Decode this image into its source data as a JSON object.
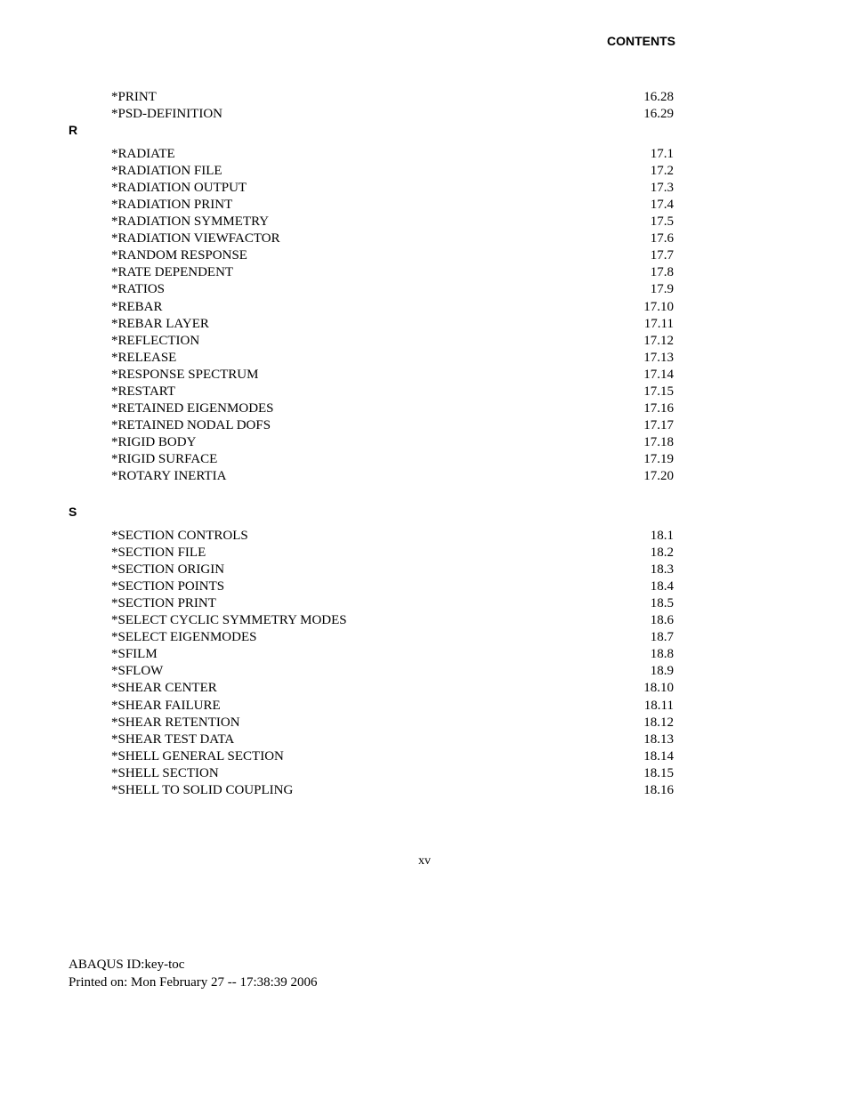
{
  "header": {
    "title": "CONTENTS"
  },
  "initial_entries": [
    {
      "label": "*PRINT",
      "page": "16.28"
    },
    {
      "label": "*PSD-DEFINITION",
      "page": "16.29"
    }
  ],
  "sections": [
    {
      "letter": "R",
      "entries": [
        {
          "label": "*RADIATE",
          "page": "17.1"
        },
        {
          "label": "*RADIATION FILE",
          "page": "17.2"
        },
        {
          "label": "*RADIATION OUTPUT",
          "page": "17.3"
        },
        {
          "label": "*RADIATION PRINT",
          "page": "17.4"
        },
        {
          "label": "*RADIATION SYMMETRY",
          "page": "17.5"
        },
        {
          "label": "*RADIATION VIEWFACTOR",
          "page": "17.6"
        },
        {
          "label": "*RANDOM RESPONSE",
          "page": "17.7"
        },
        {
          "label": "*RATE DEPENDENT",
          "page": "17.8"
        },
        {
          "label": "*RATIOS",
          "page": "17.9"
        },
        {
          "label": "*REBAR",
          "page": "17.10"
        },
        {
          "label": "*REBAR LAYER",
          "page": "17.11"
        },
        {
          "label": "*REFLECTION",
          "page": "17.12"
        },
        {
          "label": "*RELEASE",
          "page": "17.13"
        },
        {
          "label": "*RESPONSE SPECTRUM",
          "page": "17.14"
        },
        {
          "label": "*RESTART",
          "page": "17.15"
        },
        {
          "label": "*RETAINED EIGENMODES",
          "page": "17.16"
        },
        {
          "label": "*RETAINED NODAL DOFS",
          "page": "17.17"
        },
        {
          "label": "*RIGID BODY",
          "page": "17.18"
        },
        {
          "label": "*RIGID SURFACE",
          "page": "17.19"
        },
        {
          "label": "*ROTARY INERTIA",
          "page": "17.20"
        }
      ]
    },
    {
      "letter": "S",
      "entries": [
        {
          "label": "*SECTION CONTROLS",
          "page": "18.1"
        },
        {
          "label": "*SECTION FILE",
          "page": "18.2"
        },
        {
          "label": "*SECTION ORIGIN",
          "page": "18.3"
        },
        {
          "label": "*SECTION POINTS",
          "page": "18.4"
        },
        {
          "label": "*SECTION PRINT",
          "page": "18.5"
        },
        {
          "label": "*SELECT CYCLIC SYMMETRY MODES",
          "page": "18.6"
        },
        {
          "label": "*SELECT EIGENMODES",
          "page": "18.7"
        },
        {
          "label": "*SFILM",
          "page": "18.8"
        },
        {
          "label": "*SFLOW",
          "page": "18.9"
        },
        {
          "label": "*SHEAR CENTER",
          "page": "18.10"
        },
        {
          "label": "*SHEAR FAILURE",
          "page": "18.11"
        },
        {
          "label": "*SHEAR RETENTION",
          "page": "18.12"
        },
        {
          "label": "*SHEAR TEST DATA",
          "page": "18.13"
        },
        {
          "label": "*SHELL GENERAL SECTION",
          "page": "18.14"
        },
        {
          "label": "*SHELL SECTION",
          "page": "18.15"
        },
        {
          "label": "*SHELL TO SOLID COUPLING",
          "page": "18.16"
        }
      ]
    }
  ],
  "page_number": "xv",
  "footer": {
    "line1": "ABAQUS ID:key-toc",
    "line2": "Printed on: Mon February 27 -- 17:38:39 2006"
  },
  "styling": {
    "background_color": "#ffffff",
    "text_color": "#000000",
    "body_font": "Times New Roman",
    "heading_font": "Arial",
    "content_fontsize": 15,
    "heading_fontsize": 14,
    "line_height": 1.27
  }
}
